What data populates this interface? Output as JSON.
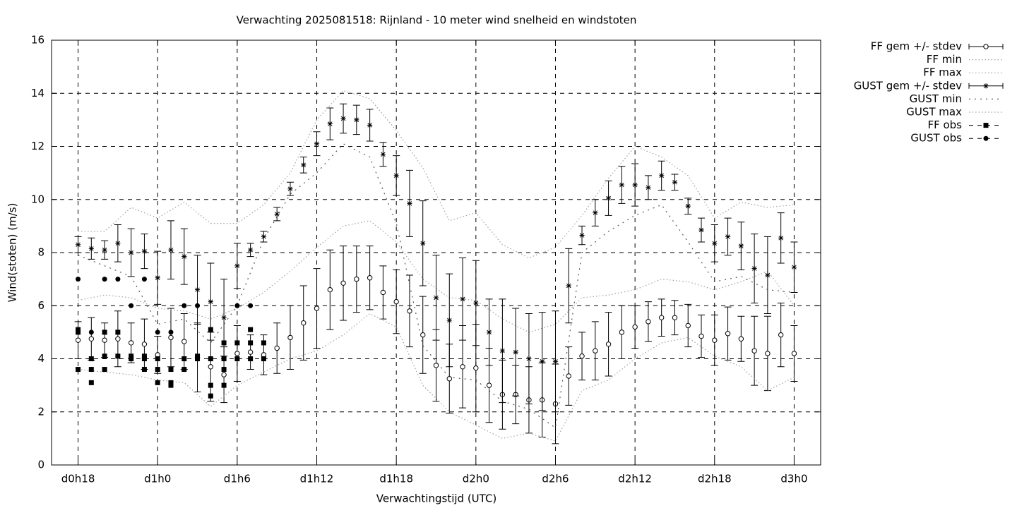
{
  "chart_data": {
    "type": "errorbar-line",
    "title": "Verwachting 2025081518: Rijnland - 10 meter wind snelheid en windstoten",
    "xlabel": "Verwachtingstijd (UTC)",
    "ylabel": "Wind(stoten) (m/s)",
    "xlim": [
      -2,
      56
    ],
    "ylim": [
      0,
      16
    ],
    "xticks": [
      {
        "value": 0,
        "label": "d0h18"
      },
      {
        "value": 6,
        "label": "d1h0"
      },
      {
        "value": 12,
        "label": "d1h6"
      },
      {
        "value": 18,
        "label": "d1h12"
      },
      {
        "value": 24,
        "label": "d1h18"
      },
      {
        "value": 30,
        "label": "d2h0"
      },
      {
        "value": 36,
        "label": "d2h6"
      },
      {
        "value": 42,
        "label": "d2h12"
      },
      {
        "value": 48,
        "label": "d2h18"
      },
      {
        "value": 54,
        "label": "d3h0"
      }
    ],
    "yticks": [
      0,
      2,
      4,
      6,
      8,
      10,
      12,
      14,
      16
    ],
    "grid": true,
    "legend": "outside",
    "x": [
      0,
      1,
      2,
      3,
      4,
      5,
      6,
      7,
      8,
      9,
      10,
      11,
      12,
      13,
      14,
      15,
      16,
      17,
      18,
      19,
      20,
      21,
      22,
      23,
      24,
      25,
      26,
      27,
      28,
      29,
      30,
      31,
      32,
      33,
      34,
      35,
      36,
      37,
      38,
      39,
      40,
      41,
      42,
      43,
      44,
      45,
      46,
      47,
      48,
      49,
      50,
      51,
      52,
      53,
      54
    ],
    "series": [
      {
        "name": "FF gem +/- stdev",
        "style": "errorbars",
        "marker": "circle",
        "color": "#000000",
        "values": [
          4.7,
          4.75,
          4.7,
          4.75,
          4.6,
          4.55,
          4.15,
          4.8,
          4.65,
          4.05,
          3.7,
          3.4,
          4.2,
          4.25,
          4.15,
          4.4,
          4.8,
          5.35,
          5.9,
          6.6,
          6.85,
          7.0,
          7.05,
          6.5,
          6.15,
          5.8,
          4.9,
          3.75,
          3.25,
          3.7,
          3.65,
          3.0,
          2.65,
          2.65,
          2.45,
          2.45,
          2.3,
          3.35,
          4.1,
          4.3,
          4.55,
          5.0,
          5.2,
          5.4,
          5.55,
          5.55,
          5.25,
          4.85,
          4.7,
          4.95,
          4.75,
          4.3,
          4.2,
          4.9,
          4.2
        ],
        "errors": [
          0.7,
          0.8,
          0.65,
          1.05,
          0.75,
          0.95,
          0.7,
          1.1,
          1.05,
          1.3,
          1.3,
          1.05,
          1.05,
          0.65,
          0.75,
          0.95,
          1.2,
          1.4,
          1.5,
          1.5,
          1.4,
          1.25,
          1.2,
          1.0,
          1.2,
          1.35,
          1.45,
          1.35,
          1.3,
          1.55,
          1.65,
          1.4,
          1.3,
          1.1,
          1.25,
          1.4,
          1.5,
          1.1,
          0.9,
          1.1,
          1.2,
          1.0,
          0.8,
          0.75,
          0.7,
          0.65,
          0.8,
          0.8,
          0.95,
          1.0,
          0.85,
          1.3,
          1.4,
          1.2,
          1.05
        ]
      },
      {
        "name": "FF min",
        "style": "dotted",
        "color": "#a0a0a0",
        "x": [
          0,
          2,
          4,
          6,
          8,
          10,
          12,
          14,
          16,
          18,
          20,
          22,
          24,
          26,
          28,
          30,
          32,
          34,
          36,
          38,
          40,
          42,
          44,
          46,
          48,
          50,
          52,
          54
        ],
        "values": [
          3.6,
          3.5,
          3.4,
          3.2,
          3.1,
          2.2,
          3.0,
          3.5,
          4.0,
          4.3,
          4.9,
          5.7,
          5.2,
          3.0,
          2.0,
          1.5,
          1.0,
          1.2,
          0.9,
          2.8,
          3.2,
          4.0,
          4.6,
          4.8,
          4.1,
          3.7,
          2.8,
          3.3
        ]
      },
      {
        "name": "FF max",
        "style": "dotted",
        "color": "#a0a0a0",
        "x": [
          0,
          2,
          4,
          6,
          8,
          10,
          12,
          14,
          16,
          18,
          20,
          22,
          24,
          26,
          28,
          30,
          32,
          34,
          36,
          38,
          40,
          42,
          44,
          46,
          48,
          50,
          52,
          54
        ],
        "values": [
          6.2,
          6.4,
          6.3,
          5.9,
          5.8,
          5.5,
          5.9,
          6.5,
          7.3,
          8.2,
          9.0,
          9.2,
          8.4,
          7.0,
          6.3,
          6.2,
          5.5,
          5.0,
          5.3,
          6.3,
          6.4,
          6.6,
          7.0,
          6.9,
          6.6,
          6.9,
          7.3,
          6.0
        ]
      },
      {
        "name": "GUST gem +/- stdev",
        "style": "errorbars",
        "marker": "star",
        "color": "#000000",
        "values": [
          8.3,
          8.15,
          8.1,
          8.35,
          8.0,
          8.05,
          7.05,
          8.1,
          7.85,
          6.6,
          6.15,
          5.55,
          7.5,
          8.1,
          8.6,
          9.45,
          10.4,
          11.3,
          12.1,
          12.85,
          13.05,
          13.0,
          12.8,
          11.7,
          10.9,
          9.85,
          8.35,
          6.3,
          5.45,
          6.25,
          6.1,
          5.0,
          4.3,
          4.25,
          4.0,
          3.9,
          3.9,
          6.75,
          8.65,
          9.5,
          10.05,
          10.55,
          10.55,
          10.45,
          10.9,
          10.65,
          9.75,
          8.85,
          8.35,
          8.6,
          8.25,
          7.4,
          7.15,
          8.55,
          7.45
        ],
        "errors": [
          0.3,
          0.4,
          0.35,
          0.7,
          0.9,
          0.65,
          1.0,
          1.1,
          1.05,
          1.3,
          1.45,
          1.45,
          0.85,
          0.25,
          0.2,
          0.25,
          0.25,
          0.3,
          0.45,
          0.6,
          0.55,
          0.55,
          0.6,
          0.45,
          0.75,
          1.25,
          1.6,
          1.6,
          1.75,
          1.55,
          1.6,
          1.25,
          1.95,
          1.65,
          1.7,
          1.85,
          1.9,
          1.4,
          0.35,
          0.5,
          0.65,
          0.7,
          0.8,
          0.45,
          0.55,
          0.3,
          0.3,
          0.45,
          0.7,
          0.7,
          0.9,
          1.3,
          1.45,
          0.95,
          0.95
        ]
      },
      {
        "name": "GUST min",
        "style": "sparse-dotted",
        "color": "#555555",
        "x": [
          0,
          2,
          4,
          6,
          8,
          10,
          12,
          14,
          16,
          18,
          20,
          22,
          24,
          26,
          28,
          30,
          32,
          34,
          36,
          38,
          40,
          42,
          44,
          46,
          48,
          50,
          52,
          54
        ],
        "values": [
          7.9,
          7.5,
          7.1,
          5.3,
          5.5,
          4.6,
          6.0,
          8.5,
          10.2,
          11.0,
          12.1,
          11.6,
          9.1,
          4.5,
          3.3,
          3.2,
          2.4,
          2.1,
          1.4,
          8.0,
          8.8,
          9.4,
          9.8,
          8.4,
          6.9,
          7.1,
          6.6,
          6.5
        ]
      },
      {
        "name": "GUST max",
        "style": "dotted",
        "color": "#a0a0a0",
        "x": [
          0,
          2,
          4,
          6,
          8,
          10,
          12,
          14,
          16,
          18,
          20,
          22,
          24,
          26,
          28,
          30,
          32,
          34,
          36,
          38,
          40,
          42,
          44,
          46,
          48,
          50,
          52,
          54
        ],
        "values": [
          8.8,
          8.8,
          9.7,
          9.3,
          9.9,
          9.1,
          9.1,
          9.8,
          11.0,
          13.0,
          14.1,
          13.8,
          12.6,
          11.2,
          9.2,
          9.5,
          8.3,
          7.8,
          8.2,
          9.4,
          10.8,
          12.0,
          11.6,
          10.9,
          9.3,
          9.9,
          9.7,
          9.8
        ]
      },
      {
        "name": "FF obs",
        "style": "points",
        "marker": "square",
        "color": "#000000",
        "x": [
          0,
          0,
          0,
          1,
          1,
          1,
          2,
          2,
          2,
          3,
          3,
          4,
          4,
          5,
          5,
          5,
          6,
          6,
          6,
          7,
          7,
          7,
          8,
          8,
          9,
          9,
          10,
          10,
          10,
          10,
          11,
          11,
          11,
          11,
          12,
          12,
          13,
          13,
          13,
          14,
          14
        ],
        "values": [
          5.1,
          5.0,
          3.6,
          4.0,
          3.6,
          3.1,
          5.0,
          4.1,
          3.6,
          5.0,
          4.1,
          4.1,
          4.0,
          4.1,
          4.0,
          3.6,
          4.0,
          3.6,
          3.1,
          3.6,
          3.1,
          3.0,
          4.0,
          3.6,
          4.1,
          4.0,
          5.1,
          4.0,
          3.0,
          2.6,
          4.6,
          4.0,
          3.6,
          3.0,
          4.6,
          4.0,
          5.1,
          4.6,
          4.0,
          4.6,
          4.0
        ]
      },
      {
        "name": "GUST obs",
        "style": "points",
        "marker": "dot",
        "color": "#000000",
        "x": [
          0,
          1,
          2,
          3,
          4,
          5,
          6,
          7,
          8,
          9,
          10,
          11,
          12,
          13
        ],
        "values": [
          7.0,
          5.0,
          7.0,
          7.0,
          6.0,
          7.0,
          5.0,
          5.0,
          6.0,
          6.0,
          4.0,
          4.0,
          6.0,
          6.0
        ]
      }
    ]
  }
}
